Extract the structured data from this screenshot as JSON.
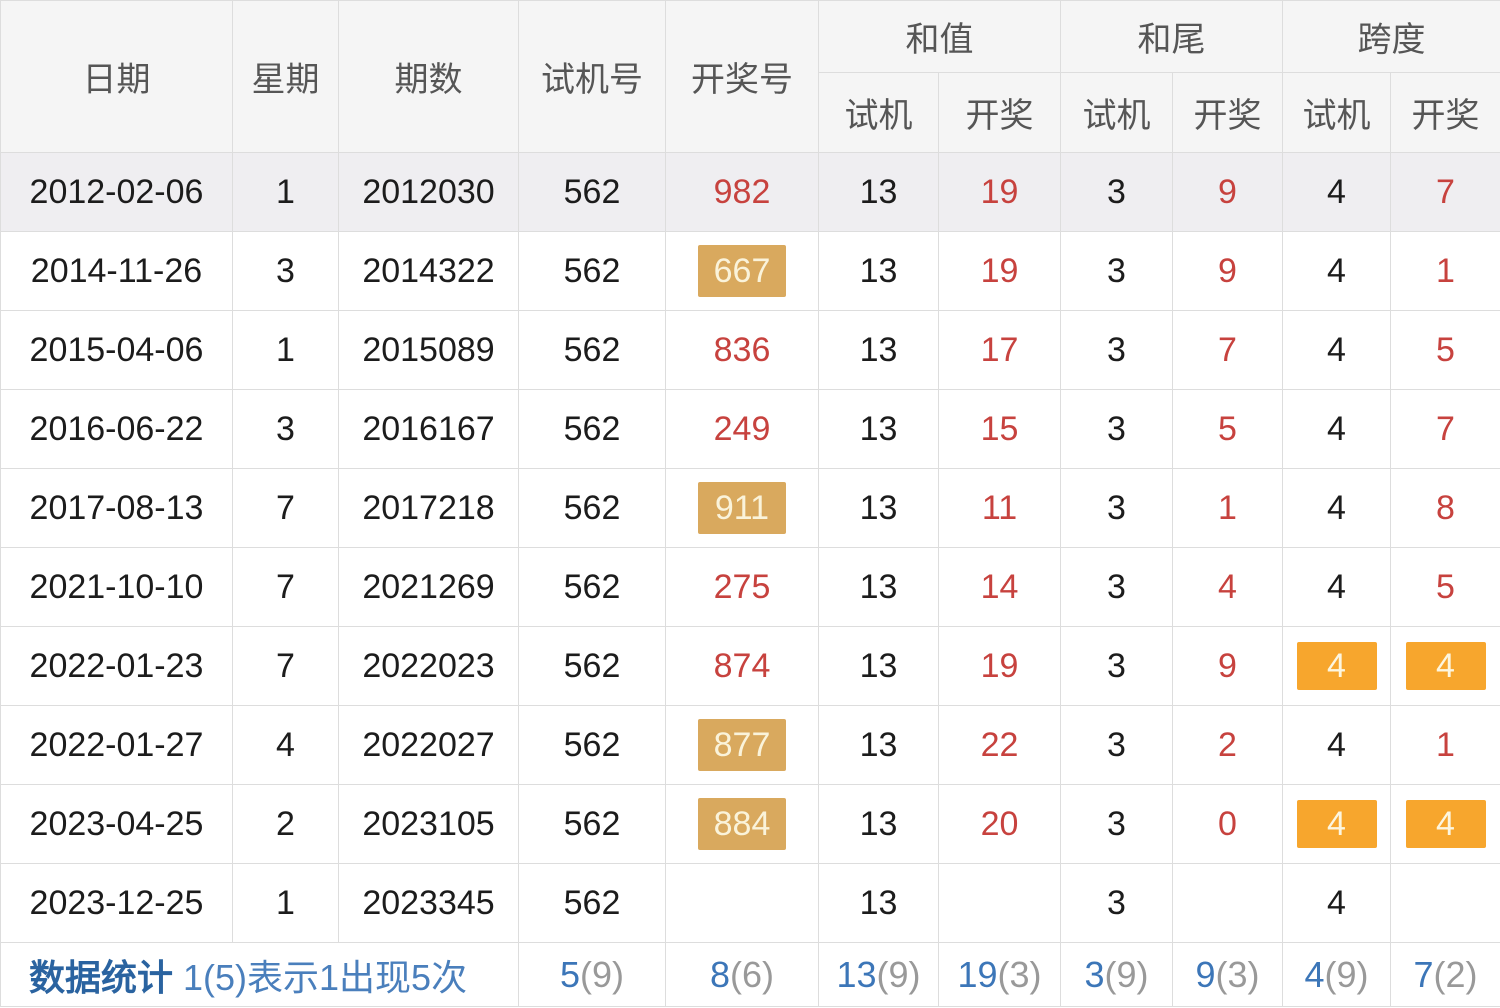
{
  "table": {
    "columns": {
      "date": "日期",
      "weekday": "星期",
      "period": "期数",
      "test_number": "试机号",
      "draw_number": "开奖号",
      "groups": [
        {
          "label": "和值",
          "sub": [
            "试机",
            "开奖"
          ]
        },
        {
          "label": "和尾",
          "sub": [
            "试机",
            "开奖"
          ]
        },
        {
          "label": "跨度",
          "sub": [
            "试机",
            "开奖"
          ]
        }
      ]
    },
    "rows": [
      {
        "date": "2012-02-06",
        "week": "1",
        "period": "2012030",
        "test": "562",
        "draw": {
          "v": "982",
          "hl": false
        },
        "sum": {
          "test": "13",
          "draw": "19"
        },
        "tail": {
          "test": "3",
          "draw": "9"
        },
        "span": {
          "test": {
            "v": "4",
            "hl": false
          },
          "draw": {
            "v": "7",
            "hl": false
          }
        },
        "shaded": true
      },
      {
        "date": "2014-11-26",
        "week": "3",
        "period": "2014322",
        "test": "562",
        "draw": {
          "v": "667",
          "hl": true
        },
        "sum": {
          "test": "13",
          "draw": "19"
        },
        "tail": {
          "test": "3",
          "draw": "9"
        },
        "span": {
          "test": {
            "v": "4",
            "hl": false
          },
          "draw": {
            "v": "1",
            "hl": false
          }
        },
        "shaded": false
      },
      {
        "date": "2015-04-06",
        "week": "1",
        "period": "2015089",
        "test": "562",
        "draw": {
          "v": "836",
          "hl": false
        },
        "sum": {
          "test": "13",
          "draw": "17"
        },
        "tail": {
          "test": "3",
          "draw": "7"
        },
        "span": {
          "test": {
            "v": "4",
            "hl": false
          },
          "draw": {
            "v": "5",
            "hl": false
          }
        },
        "shaded": false
      },
      {
        "date": "2016-06-22",
        "week": "3",
        "period": "2016167",
        "test": "562",
        "draw": {
          "v": "249",
          "hl": false
        },
        "sum": {
          "test": "13",
          "draw": "15"
        },
        "tail": {
          "test": "3",
          "draw": "5"
        },
        "span": {
          "test": {
            "v": "4",
            "hl": false
          },
          "draw": {
            "v": "7",
            "hl": false
          }
        },
        "shaded": false
      },
      {
        "date": "2017-08-13",
        "week": "7",
        "period": "2017218",
        "test": "562",
        "draw": {
          "v": "911",
          "hl": true
        },
        "sum": {
          "test": "13",
          "draw": "11"
        },
        "tail": {
          "test": "3",
          "draw": "1"
        },
        "span": {
          "test": {
            "v": "4",
            "hl": false
          },
          "draw": {
            "v": "8",
            "hl": false
          }
        },
        "shaded": false
      },
      {
        "date": "2021-10-10",
        "week": "7",
        "period": "2021269",
        "test": "562",
        "draw": {
          "v": "275",
          "hl": false
        },
        "sum": {
          "test": "13",
          "draw": "14"
        },
        "tail": {
          "test": "3",
          "draw": "4"
        },
        "span": {
          "test": {
            "v": "4",
            "hl": false
          },
          "draw": {
            "v": "5",
            "hl": false
          }
        },
        "shaded": false
      },
      {
        "date": "2022-01-23",
        "week": "7",
        "period": "2022023",
        "test": "562",
        "draw": {
          "v": "874",
          "hl": false
        },
        "sum": {
          "test": "13",
          "draw": "19"
        },
        "tail": {
          "test": "3",
          "draw": "9"
        },
        "span": {
          "test": {
            "v": "4",
            "hl": true
          },
          "draw": {
            "v": "4",
            "hl": true
          }
        },
        "shaded": false
      },
      {
        "date": "2022-01-27",
        "week": "4",
        "period": "2022027",
        "test": "562",
        "draw": {
          "v": "877",
          "hl": true
        },
        "sum": {
          "test": "13",
          "draw": "22"
        },
        "tail": {
          "test": "3",
          "draw": "2"
        },
        "span": {
          "test": {
            "v": "4",
            "hl": false
          },
          "draw": {
            "v": "1",
            "hl": false
          }
        },
        "shaded": false
      },
      {
        "date": "2023-04-25",
        "week": "2",
        "period": "2023105",
        "test": "562",
        "draw": {
          "v": "884",
          "hl": true
        },
        "sum": {
          "test": "13",
          "draw": "20"
        },
        "tail": {
          "test": "3",
          "draw": "0"
        },
        "span": {
          "test": {
            "v": "4",
            "hl": true
          },
          "draw": {
            "v": "4",
            "hl": true
          }
        },
        "shaded": false
      },
      {
        "date": "2023-12-25",
        "week": "1",
        "period": "2023345",
        "test": "562",
        "draw": {
          "v": "",
          "hl": false
        },
        "sum": {
          "test": "13",
          "draw": ""
        },
        "tail": {
          "test": "3",
          "draw": ""
        },
        "span": {
          "test": {
            "v": "4",
            "hl": false
          },
          "draw": {
            "v": "",
            "hl": false
          }
        },
        "shaded": false
      }
    ],
    "footer": {
      "label_bold": "数据统计",
      "label_note": "1(5)表示1出现5次",
      "stats": [
        {
          "num": "5",
          "paren": "(9)"
        },
        {
          "num": "8",
          "paren": "(6)"
        },
        {
          "num": "13",
          "paren": "(9)"
        },
        {
          "num": "19",
          "paren": "(3)"
        },
        {
          "num": "3",
          "paren": "(9)"
        },
        {
          "num": "9",
          "paren": "(3)"
        },
        {
          "num": "4",
          "paren": "(9)"
        },
        {
          "num": "7",
          "paren": "(2)"
        }
      ]
    }
  },
  "colors": {
    "header_bg": "#f5f5f5",
    "shaded_row_bg": "#efeef1",
    "red_text": "#c7423e",
    "gold_highlight_bg": "#d9a95e",
    "orange_highlight_bg": "#f7a62d",
    "footer_label_blue": "#2a63a0",
    "footer_note_blue": "#4a7fbc",
    "stat_number_blue": "#3c76b8",
    "stat_paren_gray": "#999999",
    "border": "#dddddd"
  }
}
